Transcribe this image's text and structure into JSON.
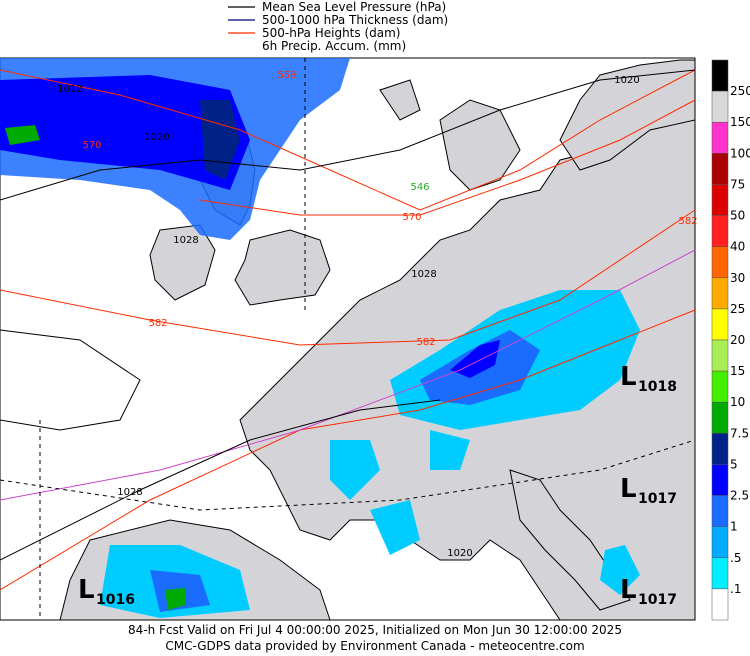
{
  "legend": [
    {
      "label": "Mean Sea Level Pressure (hPa)",
      "color": "#000000"
    },
    {
      "label": "500-1000 hPa Thickness (dam)",
      "color": "#000080"
    },
    {
      "label": "500-hPa Heights (dam)",
      "color": "#ff2a00"
    },
    {
      "label": "6h Precip. Accum. (mm)"
    }
  ],
  "colorbar": {
    "colors": [
      "#000000",
      "#d8d8d8",
      "#ff33cc",
      "#aa0000",
      "#dd0000",
      "#ff2020",
      "#ff6600",
      "#ffaa00",
      "#ffff00",
      "#aaee55",
      "#44ee00",
      "#00aa00",
      "#002288",
      "#0000ff",
      "#1a6cff",
      "#00aaff",
      "#00eeff",
      "#ffffff"
    ],
    "labels": [
      "250",
      "150",
      "100",
      "75",
      "50",
      "40",
      "30",
      "25",
      "20",
      "15",
      "10",
      "7.5",
      "5",
      "2.5",
      "1",
      ".5",
      ".1"
    ]
  },
  "contour_labels": [
    {
      "text": "1012",
      "color": "#000000"
    },
    {
      "text": "1020",
      "color": "#000000"
    },
    {
      "text": "570",
      "color": "#ff2a00"
    },
    {
      "text": "558",
      "color": "#ff2a00"
    },
    {
      "text": "546",
      "color": "#22aa22"
    },
    {
      "text": "570",
      "color": "#ff2a00"
    },
    {
      "text": "1028",
      "color": "#000000"
    },
    {
      "text": "1028",
      "color": "#000000"
    },
    {
      "text": "582",
      "color": "#ff2a00"
    },
    {
      "text": "582",
      "color": "#ff2a00"
    },
    {
      "text": "582",
      "color": "#ff2a00"
    },
    {
      "text": "1020",
      "color": "#000000"
    },
    {
      "text": "1028",
      "color": "#000000"
    },
    {
      "text": "1020",
      "color": "#000000"
    }
  ],
  "lows": [
    {
      "letter": "L",
      "pressure": "1018"
    },
    {
      "letter": "L",
      "pressure": "1017"
    },
    {
      "letter": "L",
      "pressure": "1017"
    },
    {
      "letter": "L",
      "pressure": "1016"
    }
  ],
  "footer": {
    "line1": "84-h Fcst Valid on Fri Jul  4 00:00:00 2025, Initialized on Mon Jun 30 12:00:00 2025",
    "line2": "CMC-GDPS data provided by Environment Canada - meteocentre.com"
  }
}
